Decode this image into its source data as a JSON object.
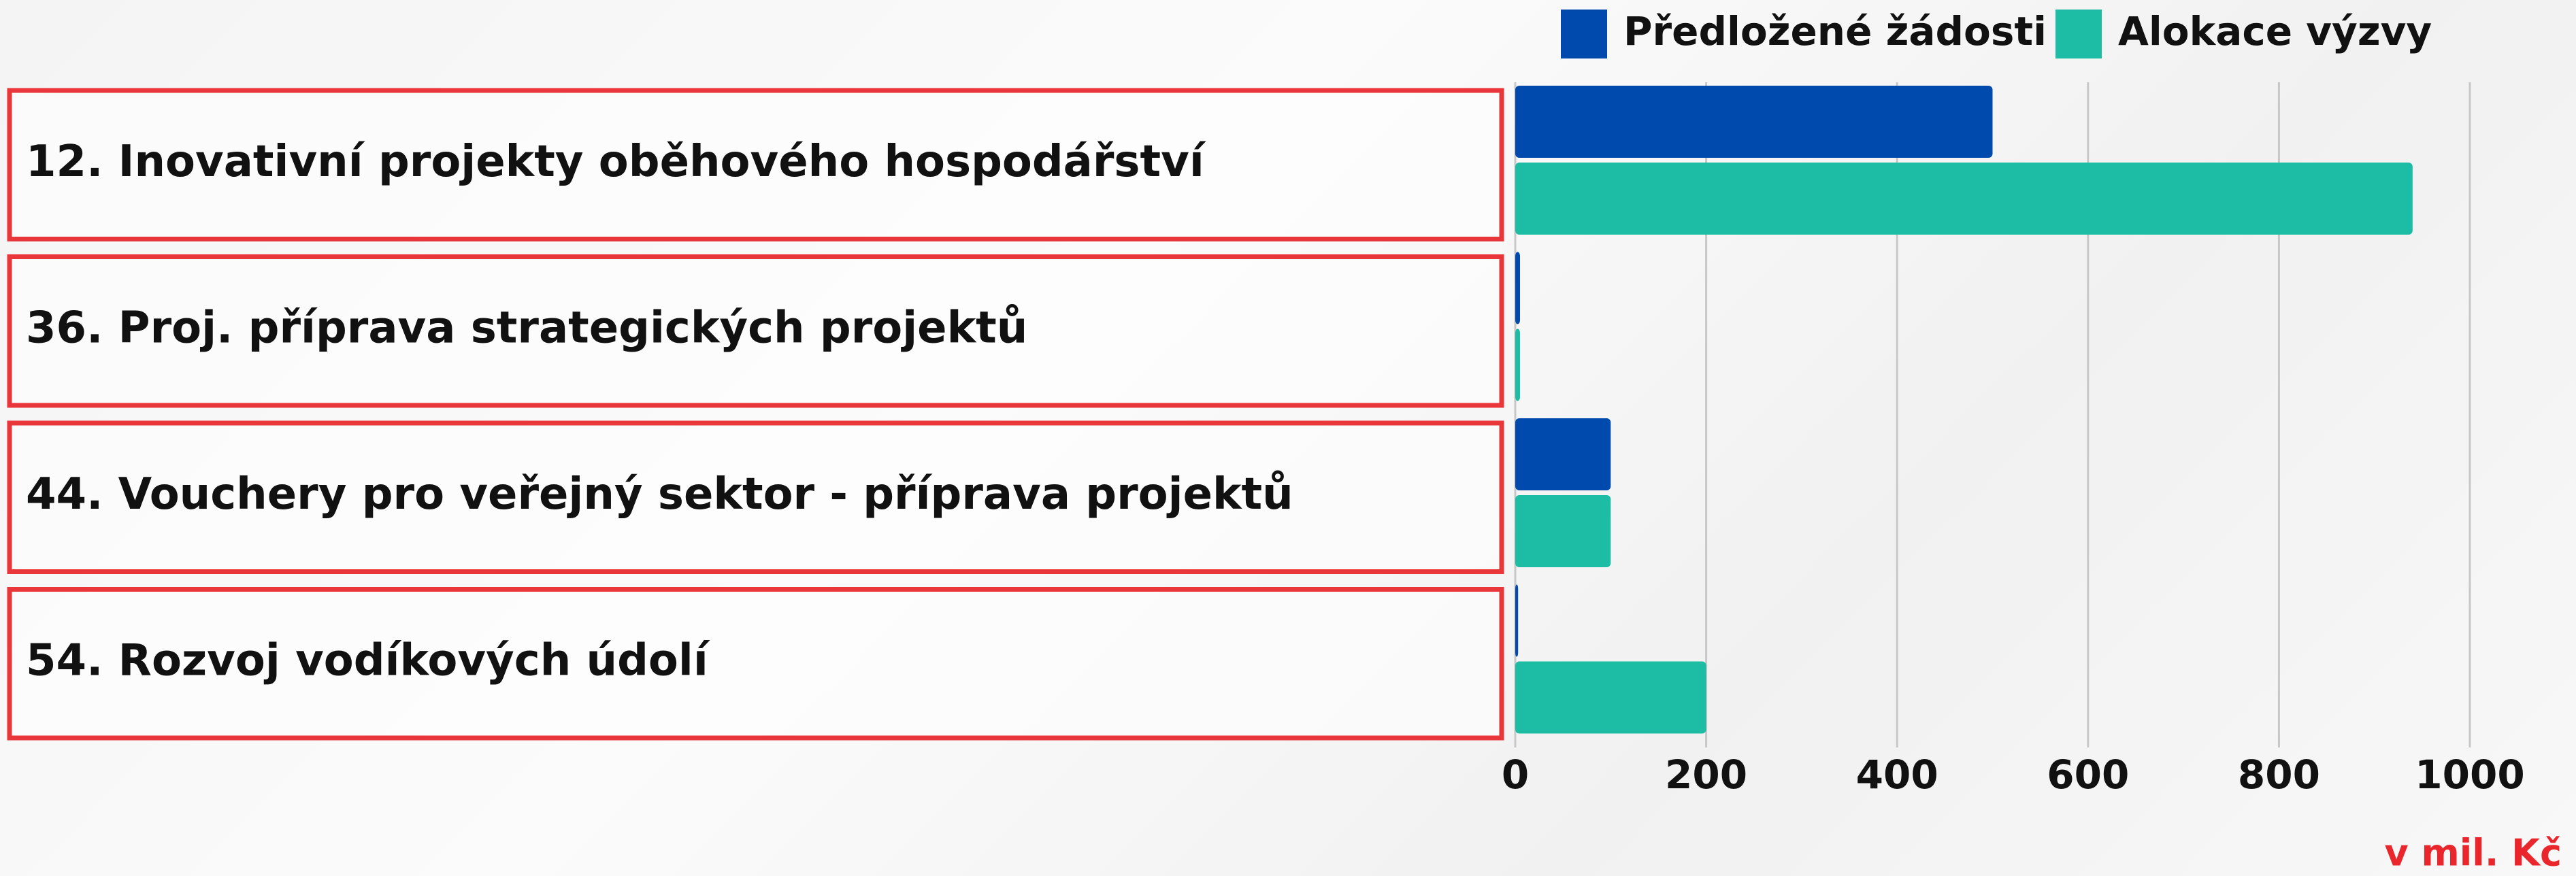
{
  "chart_data": {
    "type": "hbar",
    "categories": [
      "12. Inovativní projekty oběhového hospodářství",
      "36. Proj. příprava strategických projektů",
      "44. Vouchery pro veřejný sektor - příprava projektů",
      "54. Rozvoj vodíkových údolí"
    ],
    "series": [
      {
        "name": "Předložené žádosti",
        "color": "#004aad",
        "values": [
          500,
          5,
          100,
          3
        ]
      },
      {
        "name": "Alokace výzvy",
        "color": "#1dbca4",
        "values": [
          940,
          5,
          100,
          200
        ]
      }
    ],
    "xlim": [
      0,
      1000
    ],
    "xticks": [
      0,
      200,
      400,
      600,
      800,
      1000
    ],
    "grid": true,
    "legend": "top",
    "unit_label": "v mil. Kč"
  }
}
